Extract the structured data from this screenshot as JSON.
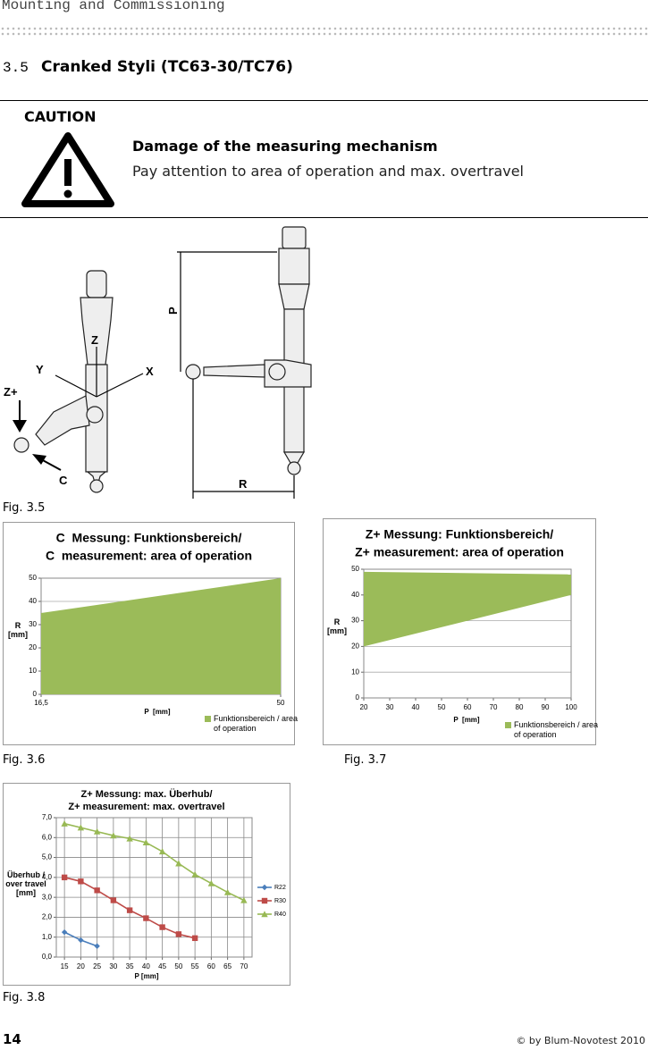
{
  "header": {
    "running_title": "Mounting and Commissioning"
  },
  "section": {
    "number": "3.5",
    "title": "Cranked Styli (TC63-30/TC76)"
  },
  "caution": {
    "label": "CAUTION",
    "heading": "Damage of the measuring mechanism",
    "text": "Pay attention to area of operation and max. overtravel"
  },
  "figure_3_5": {
    "labels": {
      "z": "Z",
      "y": "Y",
      "x": "X",
      "z_plus": "Z+",
      "c": "C",
      "p": "P",
      "r": "R"
    },
    "caption": "Fig. 3.5"
  },
  "chart_data": [
    {
      "type": "area",
      "title": [
        "C  Messung: Funktionsbereich/",
        "C  measurement: area of operation"
      ],
      "xlabel": "P  [mm]",
      "ylabel": "R [mm]",
      "x": [
        16.5,
        50
      ],
      "series": [
        {
          "name": "Funktionsbereich / area of operation",
          "color": "#9bbb59",
          "upper": [
            35,
            50
          ],
          "lower": [
            0,
            0
          ]
        }
      ],
      "xlim": [
        16.5,
        50
      ],
      "xticks": [
        {
          "value": 16.5,
          "label": "16,5"
        },
        50
      ],
      "ylim": [
        0,
        50
      ],
      "yticks": [
        0,
        10,
        20,
        30,
        40,
        50
      ],
      "grid": true,
      "legend": "bottom-right"
    },
    {
      "type": "area",
      "title": [
        "Z+ Messung: Funktionsbereich/",
        "Z+ measurement: area of operation"
      ],
      "xlabel": "P  [mm]",
      "ylabel": "R [mm]",
      "x": [
        20,
        100
      ],
      "series": [
        {
          "name": "Funktionsbereich / area of operation",
          "color": "#9bbb59",
          "upper": [
            49,
            48
          ],
          "lower": [
            20,
            40
          ]
        }
      ],
      "xlim": [
        20,
        100
      ],
      "xticks": [
        20,
        30,
        40,
        50,
        60,
        70,
        80,
        90,
        100
      ],
      "ylim": [
        0,
        50
      ],
      "yticks": [
        0,
        10,
        20,
        30,
        40,
        50
      ],
      "grid": true,
      "legend": "bottom-right"
    },
    {
      "type": "line",
      "title": [
        "Z+ Messung: max. Überhub/",
        "Z+ measurement: max. overtravel"
      ],
      "xlabel": "P [mm]",
      "ylabel": "Überhub / over travel [mm]",
      "x": [
        15,
        20,
        25,
        30,
        35,
        40,
        45,
        50,
        55,
        60,
        65,
        70
      ],
      "series": [
        {
          "name": "R22",
          "color": "#4a7ebb",
          "marker": "diamond",
          "values": [
            1.25,
            0.85,
            0.55,
            null,
            null,
            null,
            null,
            null,
            null,
            null,
            null,
            null
          ]
        },
        {
          "name": "R30",
          "color": "#be4b48",
          "marker": "square",
          "values": [
            4.0,
            3.8,
            3.35,
            2.85,
            2.35,
            1.95,
            1.5,
            1.15,
            0.95,
            null,
            null,
            null
          ]
        },
        {
          "name": "R40",
          "color": "#98b954",
          "marker": "triangle",
          "values": [
            6.7,
            6.5,
            6.3,
            6.1,
            5.95,
            5.75,
            5.3,
            4.7,
            4.15,
            3.7,
            3.25,
            2.85
          ]
        }
      ],
      "xlim": [
        12.5,
        72.5
      ],
      "xticks": [
        15,
        20,
        25,
        30,
        35,
        40,
        45,
        50,
        55,
        60,
        65,
        70
      ],
      "ylim": [
        0,
        7
      ],
      "yticks": [
        {
          "value": 0,
          "label": "0,0"
        },
        {
          "value": 1,
          "label": "1,0"
        },
        {
          "value": 2,
          "label": "2,0"
        },
        {
          "value": 3,
          "label": "3,0"
        },
        {
          "value": 4,
          "label": "4,0"
        },
        {
          "value": 5,
          "label": "5,0"
        },
        {
          "value": 6,
          "label": "6,0"
        },
        {
          "value": 7,
          "label": "7,0"
        }
      ],
      "grid": true,
      "legend": "right"
    }
  ],
  "figure_captions": [
    "Fig. 3.6",
    "Fig. 3.7",
    "Fig. 3.8"
  ],
  "footer": {
    "page": "14",
    "copyright": "© by Blum-Novotest 2010"
  }
}
